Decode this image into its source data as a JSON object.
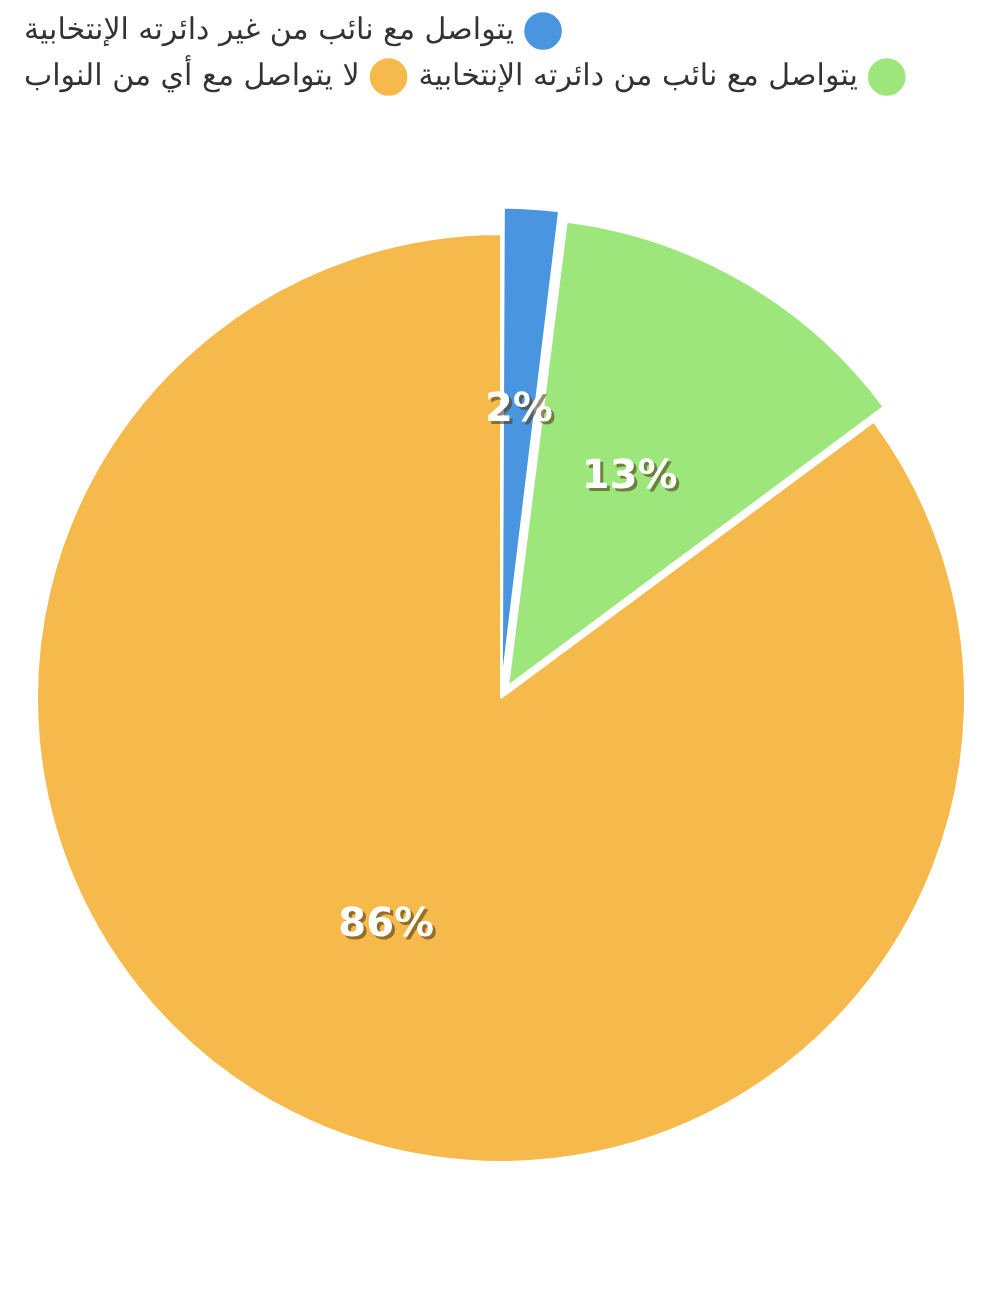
{
  "chart_data": {
    "type": "pie",
    "categories": [
      "يتواصل مع نائب من غير دائرته الإنتخابية",
      "يتواصل مع نائب من دائرته الإنتخابية",
      "لا يتواصل مع أي من النواب"
    ],
    "values": [
      2,
      13,
      86
    ],
    "colors": [
      "#4a95e0",
      "#9ce67c",
      "#f6ba4c"
    ],
    "value_labels": [
      "2%",
      "13%",
      "86%"
    ],
    "legend": "top right"
  }
}
